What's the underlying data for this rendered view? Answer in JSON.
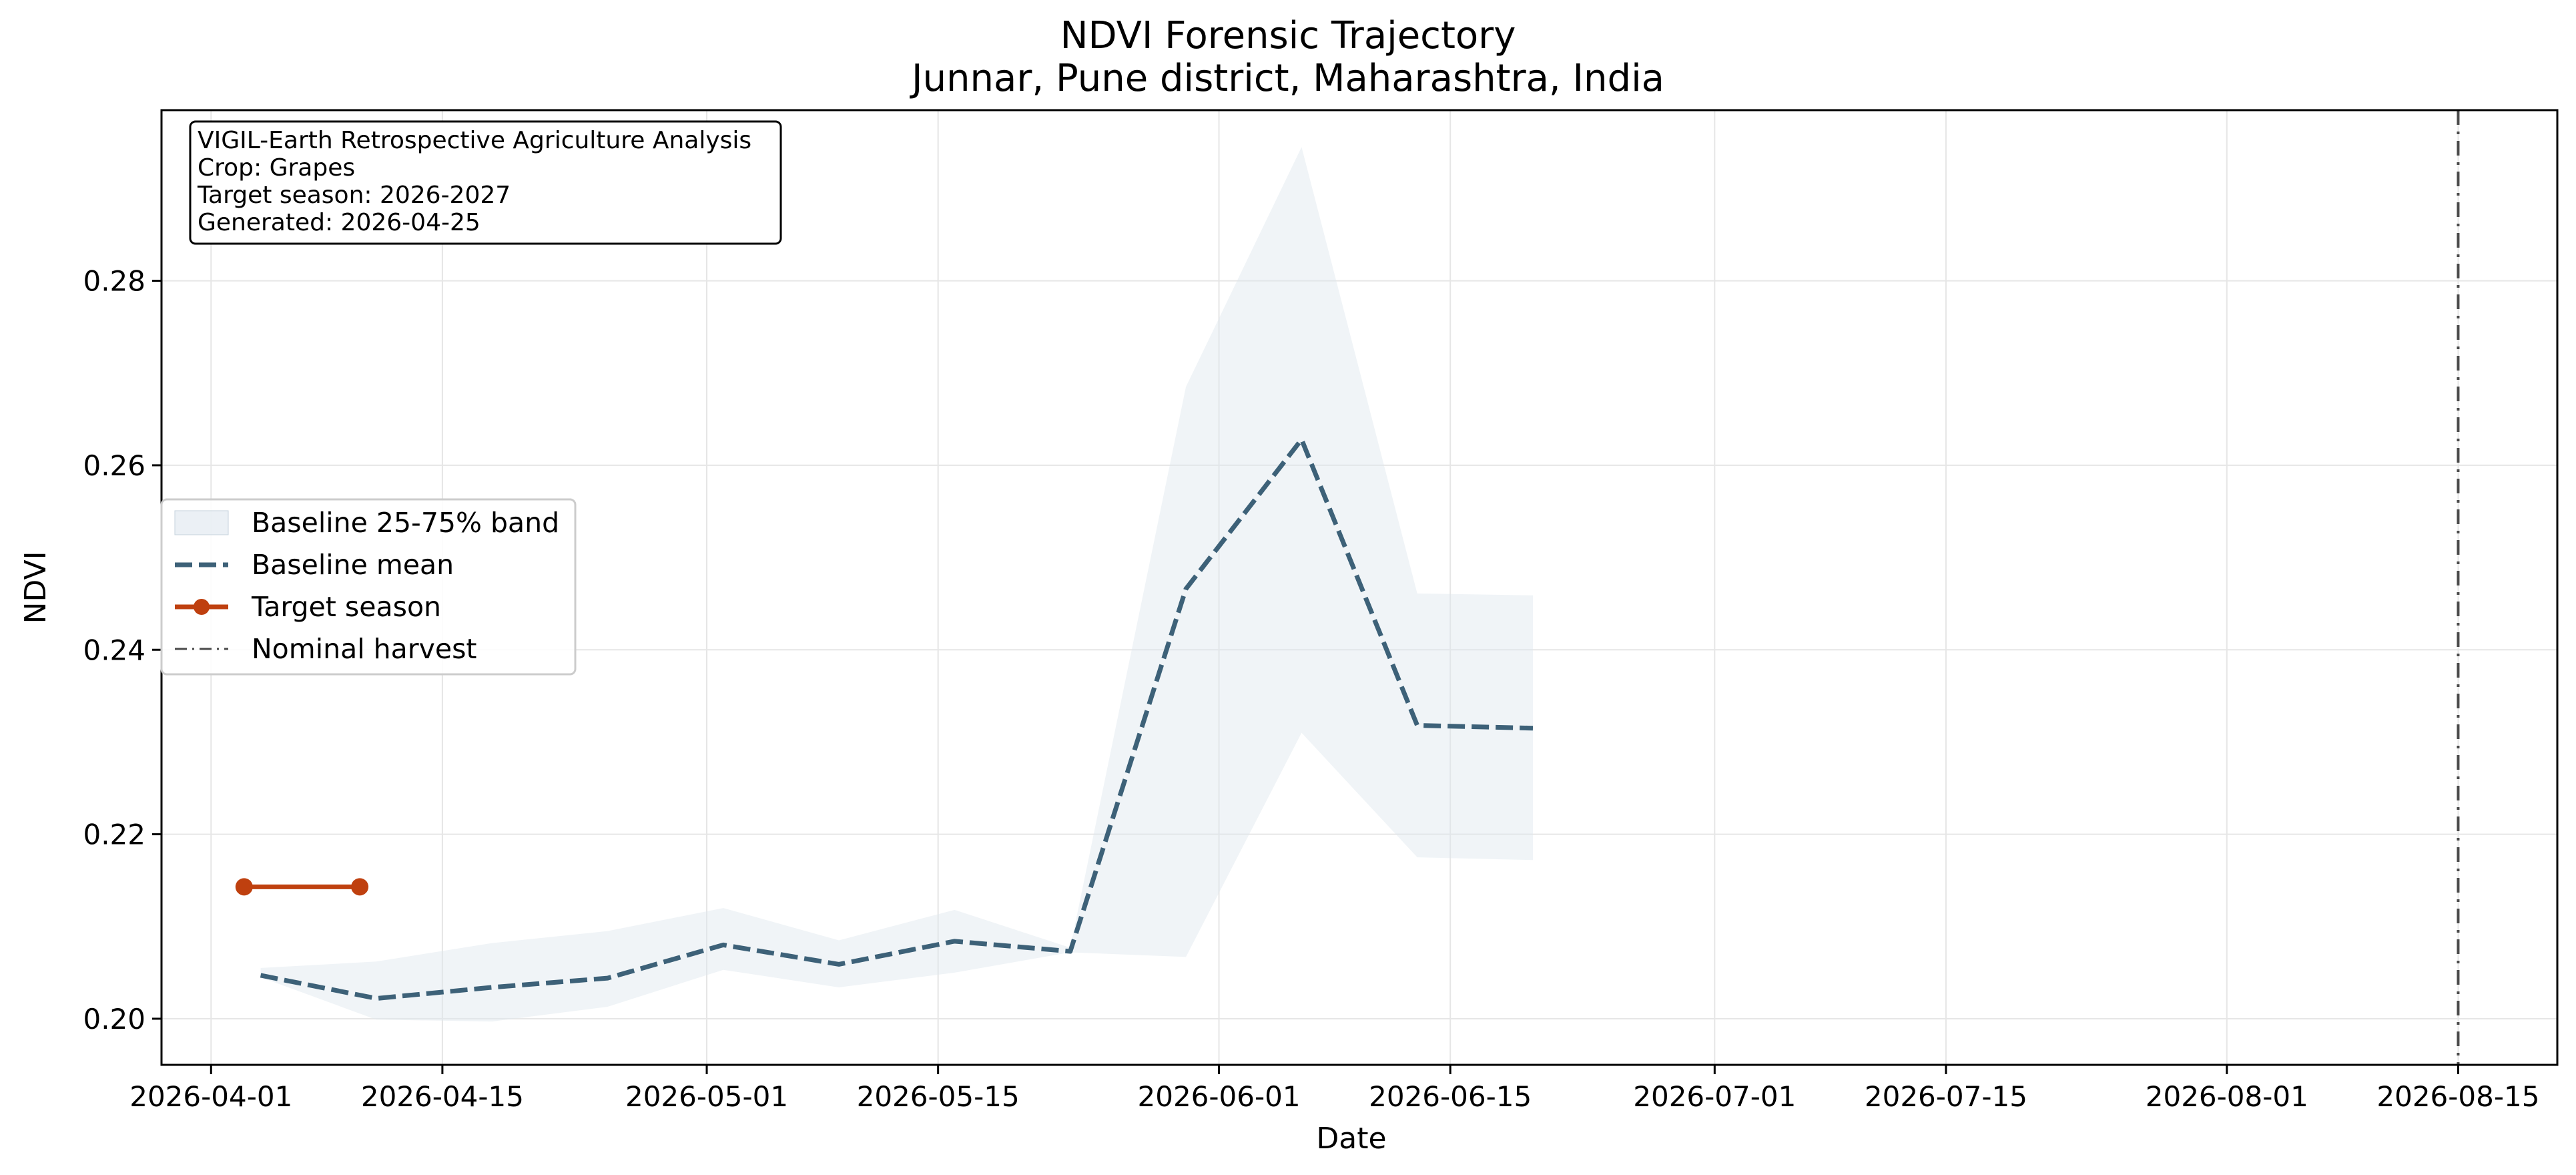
{
  "chart_data": {
    "type": "line",
    "title": "NDVI Forensic Trajectory",
    "subtitle": "Junnar, Pune district, Maharashtra, India",
    "xlabel": "Date",
    "ylabel": "NDVI",
    "xlim": [
      "2026-03-29",
      "2026-08-21"
    ],
    "ylim": [
      0.195,
      0.2985
    ],
    "x_ticks": [
      "2026-04-01",
      "2026-04-15",
      "2026-05-01",
      "2026-05-15",
      "2026-06-01",
      "2026-06-15",
      "2026-07-01",
      "2026-07-15",
      "2026-08-01",
      "2026-08-15"
    ],
    "y_ticks": [
      0.2,
      0.22,
      0.24,
      0.26,
      0.28
    ],
    "grid": true,
    "legend_position": "center-left",
    "info_box": [
      "VIGIL-Earth Retrospective Agriculture Analysis",
      "Crop: Grapes",
      "Target season: 2026-2027",
      "Generated: 2026-04-25"
    ],
    "band": {
      "name": "Baseline 25-75% band",
      "color": "#dde6ee",
      "x": [
        "2026-04-04",
        "2026-04-11",
        "2026-04-18",
        "2026-04-25",
        "2026-05-02",
        "2026-05-09",
        "2026-05-16",
        "2026-05-23",
        "2026-05-30",
        "2026-06-06",
        "2026-06-13",
        "2026-06-20"
      ],
      "lower": [
        0.2045,
        0.1999,
        0.1997,
        0.2013,
        0.2053,
        0.2034,
        0.205,
        0.2072,
        0.2067,
        0.231,
        0.2175,
        0.2172
      ],
      "upper": [
        0.2055,
        0.2062,
        0.2082,
        0.2095,
        0.212,
        0.2085,
        0.2118,
        0.2077,
        0.2685,
        0.2945,
        0.2461,
        0.2459
      ]
    },
    "series": [
      {
        "name": "Baseline mean",
        "color": "#3d6178",
        "style": "dashed",
        "x": [
          "2026-04-04",
          "2026-04-11",
          "2026-04-18",
          "2026-04-25",
          "2026-05-02",
          "2026-05-09",
          "2026-05-16",
          "2026-05-23",
          "2026-05-30",
          "2026-06-06",
          "2026-06-13",
          "2026-06-20"
        ],
        "y": [
          0.2047,
          0.2022,
          0.2034,
          0.2044,
          0.208,
          0.2059,
          0.2084,
          0.2073,
          0.2466,
          0.2628,
          0.2318,
          0.2315
        ]
      },
      {
        "name": "Target season",
        "color": "#bf400f",
        "style": "solid-markers",
        "x": [
          "2026-04-03",
          "2026-04-10"
        ],
        "y": [
          0.2143,
          0.2143
        ]
      }
    ],
    "vlines": [
      {
        "name": "Nominal harvest",
        "x": "2026-08-15",
        "color": "#4a4a4a",
        "style": "dashdot"
      }
    ]
  }
}
